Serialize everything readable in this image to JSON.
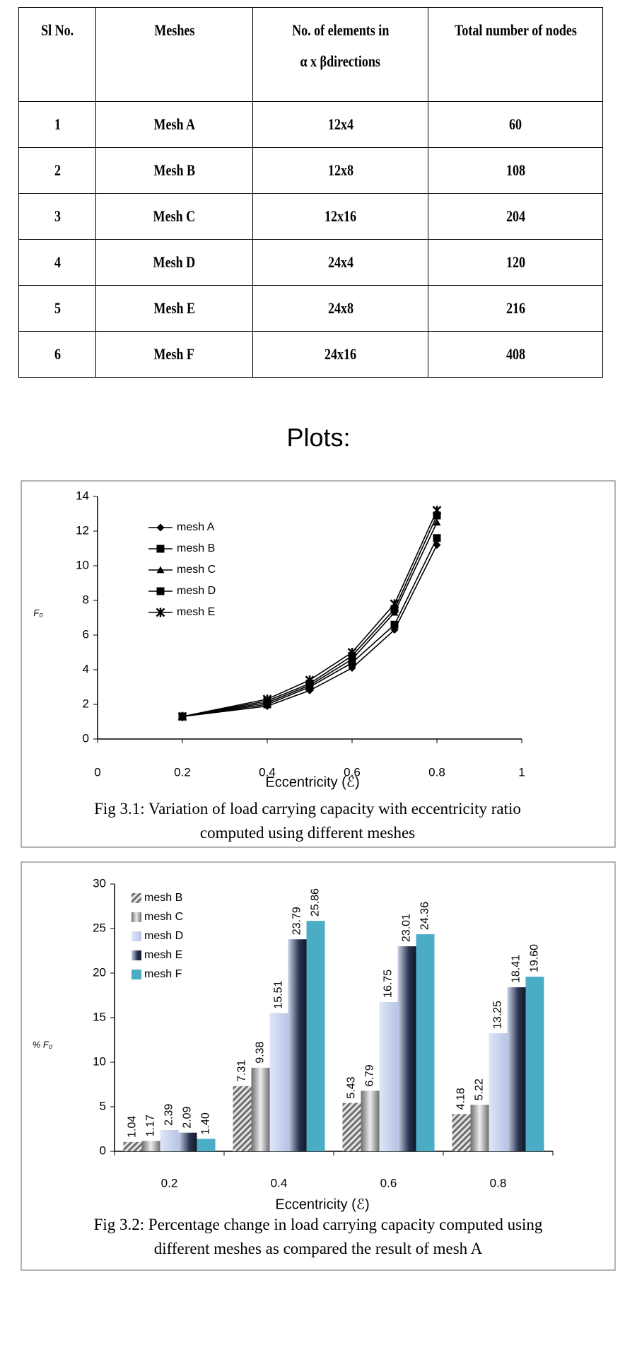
{
  "table": {
    "header": [
      "Sl No.",
      "Meshes",
      [
        "No. of elements in",
        "α x βdirections"
      ],
      "Total number of nodes"
    ],
    "rows": [
      [
        "1",
        "Mesh A",
        "12x4",
        "60"
      ],
      [
        "2",
        "Mesh B",
        "12x8",
        "108"
      ],
      [
        "3",
        "Mesh C",
        "12x16",
        "204"
      ],
      [
        "4",
        "Mesh D",
        "24x4",
        "120"
      ],
      [
        "5",
        "Mesh E",
        "24x8",
        "216"
      ],
      [
        "6",
        "Mesh F",
        "24x16",
        "408"
      ]
    ]
  },
  "heading": "Plots:",
  "chart_data": [
    {
      "type": "line",
      "xlabel": "Eccentricity (ℰ)",
      "ylabel": "F₀",
      "caption": "Fig 3.1: Variation of load carrying capacity with eccentricity ratio computed using different meshes",
      "x": [
        0.2,
        0.4,
        0.5,
        0.6,
        0.7,
        0.8
      ],
      "xlim": [
        0,
        1
      ],
      "xticks": [
        0,
        0.2,
        0.4,
        0.6,
        0.8,
        1
      ],
      "ylim": [
        0,
        14
      ],
      "yticks": [
        0,
        2,
        4,
        6,
        8,
        10,
        12,
        14
      ],
      "legend": "top-left",
      "series": [
        {
          "name": "mesh A",
          "color": "#000000",
          "marker": "diamond",
          "values": [
            1.3,
            1.9,
            2.8,
            4.1,
            6.3,
            11.2
          ]
        },
        {
          "name": "mesh B",
          "color": "#000000",
          "marker": "square",
          "values": [
            1.3,
            2.0,
            3.0,
            4.4,
            6.6,
            11.6
          ]
        },
        {
          "name": "mesh C",
          "color": "#000000",
          "marker": "triangle",
          "values": [
            1.3,
            2.1,
            3.1,
            4.6,
            7.3,
            12.5
          ]
        },
        {
          "name": "mesh D",
          "color": "#000000",
          "marker": "square",
          "values": [
            1.3,
            2.2,
            3.2,
            4.8,
            7.5,
            12.9
          ]
        },
        {
          "name": "mesh E",
          "color": "#000000",
          "marker": "star",
          "values": [
            1.3,
            2.3,
            3.4,
            5.0,
            7.8,
            13.2
          ]
        }
      ]
    },
    {
      "type": "bar",
      "xlabel": "Eccentricity (ℰ)",
      "ylabel": "% F₀",
      "caption": "Fig 3.2: Percentage change in load carrying capacity computed  using different meshes as compared the result of mesh A",
      "categories": [
        "0.2",
        "0.4",
        "0.6",
        "0.8"
      ],
      "ylim": [
        0,
        30
      ],
      "yticks": [
        0,
        5,
        10,
        15,
        20,
        25,
        30
      ],
      "legend": "top-left",
      "series": [
        {
          "name": "mesh B",
          "color": "#8c8c8c",
          "values": [
            1.04,
            7.31,
            5.43,
            4.18
          ],
          "value_labels": [
            "1.04",
            "7.31",
            "5.43",
            "4.18"
          ]
        },
        {
          "name": "mesh C",
          "color": "#9a9a9a",
          "values": [
            1.17,
            9.38,
            6.79,
            5.22
          ],
          "value_labels": [
            "1.17",
            "9.38",
            "6.79",
            "5.22"
          ]
        },
        {
          "name": "mesh D",
          "color": "#c9d4ee",
          "values": [
            2.39,
            15.51,
            16.75,
            13.25
          ],
          "value_labels": [
            "2.39",
            "15.51",
            "16.75",
            "13.25"
          ]
        },
        {
          "name": "mesh E",
          "color": "#2b3552",
          "values": [
            2.09,
            23.79,
            23.01,
            18.41
          ],
          "value_labels": [
            "2.09",
            "23.79",
            "23.01",
            "18.41"
          ]
        },
        {
          "name": "mesh F",
          "color": "#4bacc6",
          "values": [
            1.4,
            25.86,
            24.36,
            19.6
          ],
          "value_labels": [
            "1.40",
            "25.86",
            "24.36",
            "19.60"
          ]
        }
      ]
    }
  ]
}
